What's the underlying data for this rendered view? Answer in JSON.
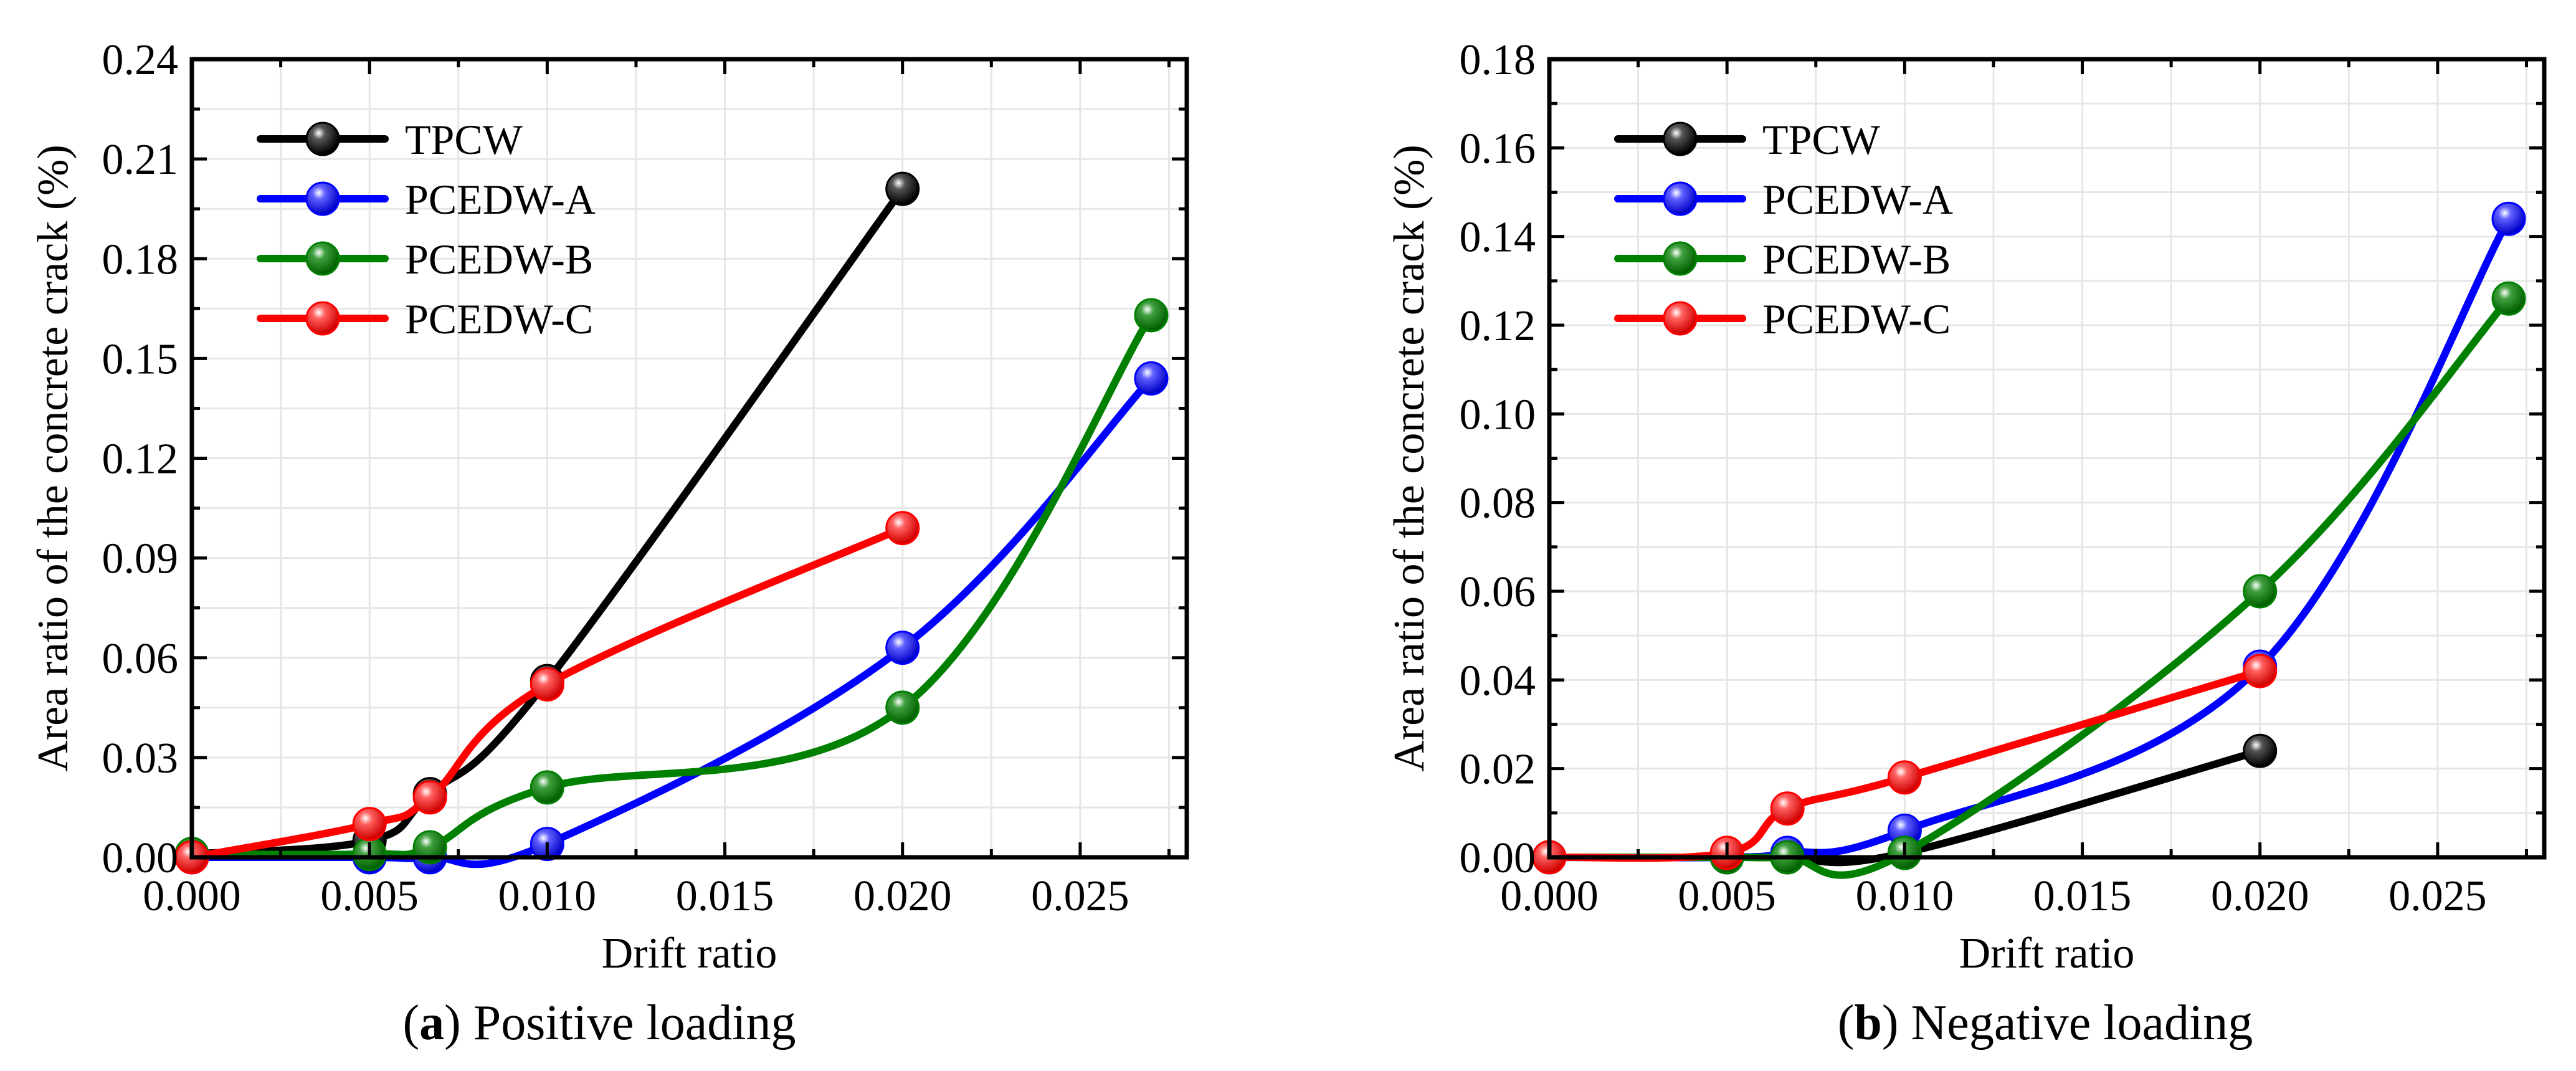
{
  "chart_data": [
    {
      "type": "line",
      "panel": "a",
      "caption_letter": "a",
      "caption_text": "Positive loading",
      "xlabel": "Drift ratio",
      "ylabel": "Area ratio of the concrete crack (%)",
      "xlim": [
        0,
        0.028
      ],
      "ylim": [
        0,
        0.24
      ],
      "xticks": [
        0.0,
        0.005,
        0.01,
        0.015,
        0.02,
        0.025
      ],
      "xtick_labels": [
        "0.000",
        "0.005",
        "0.010",
        "0.015",
        "0.020",
        "0.025"
      ],
      "yticks": [
        0,
        0.03,
        0.06,
        0.09,
        0.12,
        0.15,
        0.18,
        0.21,
        0.24
      ],
      "ytick_labels": [
        "0.00",
        "0.03",
        "0.06",
        "0.09",
        "0.12",
        "0.15",
        "0.18",
        "0.21",
        "0.24"
      ],
      "grid": true,
      "legend_position": "top-left",
      "series": [
        {
          "name": "TPCW",
          "color": "#000000",
          "x": [
            0.0,
            0.005,
            0.0067,
            0.01,
            0.02
          ],
          "y": [
            0.001,
            0.005,
            0.019,
            0.053,
            0.201
          ]
        },
        {
          "name": "PCEDW-A",
          "color": "#0000ff",
          "x": [
            0.0,
            0.005,
            0.0067,
            0.01,
            0.02,
            0.027
          ],
          "y": [
            0.0,
            0.0,
            0.0,
            0.004,
            0.063,
            0.144
          ]
        },
        {
          "name": "PCEDW-B",
          "color": "#008000",
          "x": [
            0.0,
            0.005,
            0.0067,
            0.01,
            0.02,
            0.027
          ],
          "y": [
            0.001,
            0.001,
            0.003,
            0.021,
            0.045,
            0.163
          ]
        },
        {
          "name": "PCEDW-C",
          "color": "#ff0000",
          "x": [
            0.0,
            0.005,
            0.0067,
            0.01,
            0.02
          ],
          "y": [
            0.0,
            0.01,
            0.018,
            0.052,
            0.099
          ]
        }
      ]
    },
    {
      "type": "line",
      "panel": "b",
      "caption_letter": "b",
      "caption_text": "Negative loading",
      "xlabel": "Drift ratio",
      "ylabel": "Area ratio of the concrete crack (%)",
      "xlim": [
        0,
        0.028
      ],
      "ylim": [
        0,
        0.18
      ],
      "xticks": [
        0.0,
        0.005,
        0.01,
        0.015,
        0.02,
        0.025
      ],
      "xtick_labels": [
        "0.000",
        "0.005",
        "0.010",
        "0.015",
        "0.020",
        "0.025"
      ],
      "yticks": [
        0,
        0.02,
        0.04,
        0.06,
        0.08,
        0.1,
        0.12,
        0.14,
        0.16,
        0.18
      ],
      "ytick_labels": [
        "0.00",
        "0.02",
        "0.04",
        "0.06",
        "0.08",
        "0.10",
        "0.12",
        "0.14",
        "0.16",
        "0.18"
      ],
      "grid": true,
      "legend_position": "top-left",
      "series": [
        {
          "name": "TPCW",
          "color": "#000000",
          "x": [
            0.0,
            0.005,
            0.0067,
            0.01,
            0.02
          ],
          "y": [
            0.0,
            0.0,
            0.0,
            0.001,
            0.024
          ]
        },
        {
          "name": "PCEDW-A",
          "color": "#0000ff",
          "x": [
            0.0,
            0.005,
            0.0067,
            0.01,
            0.02,
            0.027
          ],
          "y": [
            0.0,
            0.0,
            0.001,
            0.006,
            0.043,
            0.144
          ]
        },
        {
          "name": "PCEDW-B",
          "color": "#008000",
          "x": [
            0.0,
            0.005,
            0.0067,
            0.01,
            0.02,
            0.027
          ],
          "y": [
            0.0,
            0.0,
            0.0,
            0.001,
            0.06,
            0.126
          ]
        },
        {
          "name": "PCEDW-C",
          "color": "#ff0000",
          "x": [
            0.0,
            0.005,
            0.0067,
            0.01,
            0.02
          ],
          "y": [
            0.0,
            0.001,
            0.011,
            0.018,
            0.042
          ]
        }
      ]
    }
  ]
}
